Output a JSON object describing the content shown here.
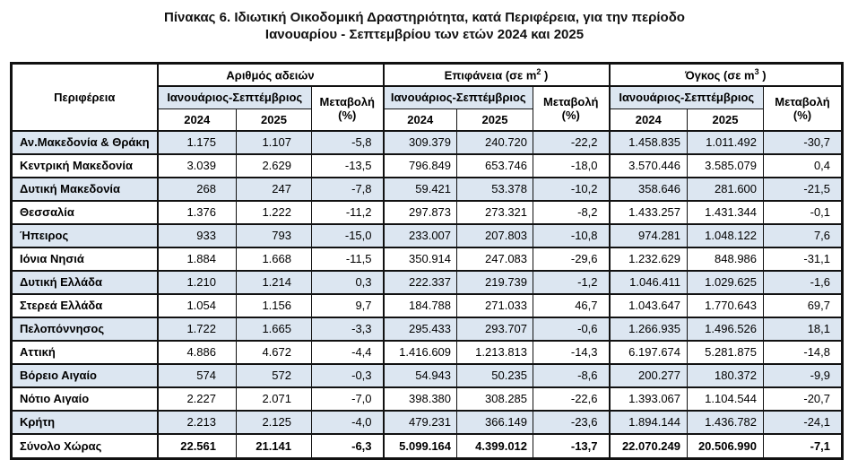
{
  "title": {
    "line1": "Πίνακας 6. Ιδιωτική  Οικοδομική Δραστηριότητα, κατά Περιφέρεια, για την περίοδο",
    "line2": "Ιανουαρίου - Σεπτεμβρίου των ετών 2024 και 2025"
  },
  "table": {
    "region_header": "Περιφέρεια",
    "groups": [
      {
        "prefix": "Αριθμός αδειών",
        "sup": "",
        "suffix": ""
      },
      {
        "prefix": "Επιφάνεια (σε m",
        "sup": "2",
        "suffix": " )"
      },
      {
        "prefix": "Όγκος (σε m",
        "sup": "3",
        "suffix": " )"
      }
    ],
    "period_header": "Ιανουάριος-Σεπτέμβριος",
    "change_header": {
      "line1": "Μεταβολή",
      "line2": "(%)"
    },
    "years": [
      "2024",
      "2025"
    ],
    "rows": [
      {
        "region": "Αν.Μακεδονία & Θράκη",
        "values": [
          "1.175",
          "1.107",
          "-5,8",
          "309.379",
          "240.720",
          "-22,2",
          "1.458.835",
          "1.011.492",
          "-30,7"
        ]
      },
      {
        "region": "Κεντρική Μακεδονία",
        "values": [
          "3.039",
          "2.629",
          "-13,5",
          "796.849",
          "653.746",
          "-18,0",
          "3.570.446",
          "3.585.079",
          "0,4"
        ]
      },
      {
        "region": "Δυτική Μακεδονία",
        "values": [
          "268",
          "247",
          "-7,8",
          "59.421",
          "53.378",
          "-10,2",
          "358.646",
          "281.600",
          "-21,5"
        ]
      },
      {
        "region": "Θεσσαλία",
        "values": [
          "1.376",
          "1.222",
          "-11,2",
          "297.873",
          "273.321",
          "-8,2",
          "1.433.257",
          "1.431.344",
          "-0,1"
        ]
      },
      {
        "region": "Ήπειρος",
        "values": [
          "933",
          "793",
          "-15,0",
          "233.007",
          "207.803",
          "-10,8",
          "974.281",
          "1.048.122",
          "7,6"
        ]
      },
      {
        "region": "Ιόνια Νησιά",
        "values": [
          "1.884",
          "1.668",
          "-11,5",
          "350.914",
          "247.083",
          "-29,6",
          "1.232.629",
          "848.986",
          "-31,1"
        ]
      },
      {
        "region": "Δυτική Ελλάδα",
        "values": [
          "1.210",
          "1.214",
          "0,3",
          "222.337",
          "219.739",
          "-1,2",
          "1.046.411",
          "1.029.625",
          "-1,6"
        ]
      },
      {
        "region": "Στερεά Ελλάδα",
        "values": [
          "1.054",
          "1.156",
          "9,7",
          "184.788",
          "271.033",
          "46,7",
          "1.043.647",
          "1.770.643",
          "69,7"
        ]
      },
      {
        "region": "Πελοπόννησος",
        "values": [
          "1.722",
          "1.665",
          "-3,3",
          "295.433",
          "293.707",
          "-0,6",
          "1.266.935",
          "1.496.526",
          "18,1"
        ]
      },
      {
        "region": "Αττική",
        "values": [
          "4.886",
          "4.672",
          "-4,4",
          "1.416.609",
          "1.213.813",
          "-14,3",
          "6.197.674",
          "5.281.875",
          "-14,8"
        ]
      },
      {
        "region": "Βόρειο Αιγαίο",
        "values": [
          "574",
          "572",
          "-0,3",
          "54.943",
          "50.235",
          "-8,6",
          "200.277",
          "180.372",
          "-9,9"
        ]
      },
      {
        "region": "Νότιο Αιγαίο",
        "values": [
          "2.227",
          "2.071",
          "-7,0",
          "398.380",
          "308.285",
          "-22,6",
          "1.393.067",
          "1.104.544",
          "-20,7"
        ]
      },
      {
        "region": "Κρήτη",
        "values": [
          "2.213",
          "2.125",
          "-4,0",
          "479.231",
          "366.149",
          "-23,6",
          "1.894.144",
          "1.436.782",
          "-24,1"
        ]
      }
    ],
    "total_row": {
      "region": "Σύνολο Χώρας",
      "values": [
        "22.561",
        "21.141",
        "-6,3",
        "5.099.164",
        "4.399.012",
        "-13,7",
        "22.070.249",
        "20.506.990",
        "-7,1"
      ]
    }
  },
  "colors": {
    "stripe": "#dce6f1",
    "border": "#111111",
    "text": "#000000",
    "background": "#ffffff"
  },
  "chart_data": {
    "type": "table",
    "title": "Πίνακας 6. Ιδιωτική Οικοδομική Δραστηριότητα, κατά Περιφέρεια, για την περίοδο Ιανουαρίου - Σεπτεμβρίου των ετών 2024 και 2025",
    "column_groups": [
      "Αριθμός αδειών",
      "Επιφάνεια (σε m2)",
      "Όγκος (σε m3)"
    ],
    "columns": [
      "Περιφέρεια",
      "Αριθμός αδειών 2024",
      "Αριθμός αδειών 2025",
      "Μεταβολή (%)",
      "Επιφάνεια (σε m2) 2024",
      "Επιφάνεια (σε m2) 2025",
      "Μεταβολή (%)",
      "Όγκος (σε m3) 2024",
      "Όγκος (σε m3) 2025",
      "Μεταβολή (%)"
    ],
    "rows": [
      [
        "Αν.Μακεδονία & Θράκη",
        1175,
        1107,
        -5.8,
        309379,
        240720,
        -22.2,
        1458835,
        1011492,
        -30.7
      ],
      [
        "Κεντρική Μακεδονία",
        3039,
        2629,
        -13.5,
        796849,
        653746,
        -18.0,
        3570446,
        3585079,
        0.4
      ],
      [
        "Δυτική Μακεδονία",
        268,
        247,
        -7.8,
        59421,
        53378,
        -10.2,
        358646,
        281600,
        -21.5
      ],
      [
        "Θεσσαλία",
        1376,
        1222,
        -11.2,
        297873,
        273321,
        -8.2,
        1433257,
        1431344,
        -0.1
      ],
      [
        "Ήπειρος",
        933,
        793,
        -15.0,
        233007,
        207803,
        -10.8,
        974281,
        1048122,
        7.6
      ],
      [
        "Ιόνια Νησιά",
        1884,
        1668,
        -11.5,
        350914,
        247083,
        -29.6,
        1232629,
        848986,
        -31.1
      ],
      [
        "Δυτική Ελλάδα",
        1210,
        1214,
        0.3,
        222337,
        219739,
        -1.2,
        1046411,
        1029625,
        -1.6
      ],
      [
        "Στερεά Ελλάδα",
        1054,
        1156,
        9.7,
        184788,
        271033,
        46.7,
        1043647,
        1770643,
        69.7
      ],
      [
        "Πελοπόννησος",
        1722,
        1665,
        -3.3,
        295433,
        293707,
        -0.6,
        1266935,
        1496526,
        18.1
      ],
      [
        "Αττική",
        4886,
        4672,
        -4.4,
        1416609,
        1213813,
        -14.3,
        6197674,
        5281875,
        -14.8
      ],
      [
        "Βόρειο Αιγαίο",
        574,
        572,
        -0.3,
        54943,
        50235,
        -8.6,
        200277,
        180372,
        -9.9
      ],
      [
        "Νότιο Αιγαίο",
        2227,
        2071,
        -7.0,
        398380,
        308285,
        -22.6,
        1393067,
        1104544,
        -20.7
      ],
      [
        "Κρήτη",
        2213,
        2125,
        -4.0,
        479231,
        366149,
        -23.6,
        1894144,
        1436782,
        -24.1
      ],
      [
        "Σύνολο Χώρας",
        22561,
        21141,
        -6.3,
        5099164,
        4399012,
        -13.7,
        22070249,
        20506990,
        -7.1
      ]
    ]
  }
}
